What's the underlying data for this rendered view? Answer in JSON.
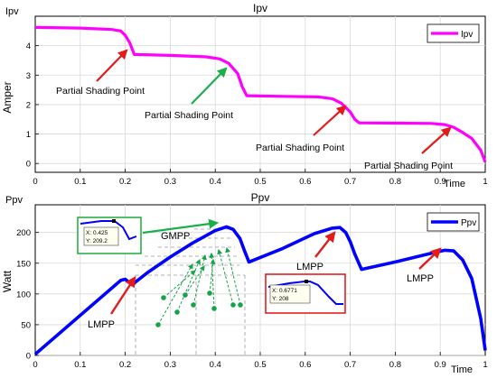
{
  "chart_data": [
    {
      "type": "line",
      "title": "Ipv",
      "ylabel": "Amper",
      "xlabel": "Time",
      "corner_label": "Ipv",
      "xlim": [
        0,
        1
      ],
      "ylim": [
        -0.3,
        5
      ],
      "xticks": [
        "0",
        "0.1",
        "0.2",
        "0.3",
        "0.4",
        "0.5",
        "0.6",
        "0.7",
        "0.8",
        "0.9",
        "1"
      ],
      "yticks": [
        "0",
        "1",
        "2",
        "3",
        "4"
      ],
      "grid": true,
      "legend": {
        "position": "top-right",
        "entries": [
          "Ipv"
        ]
      },
      "series": [
        {
          "name": "Ipv",
          "color": "#ff00ff",
          "x": [
            0,
            0.1,
            0.17,
            0.19,
            0.2,
            0.21,
            0.22,
            0.3,
            0.38,
            0.41,
            0.43,
            0.45,
            0.46,
            0.47,
            0.55,
            0.63,
            0.66,
            0.68,
            0.7,
            0.71,
            0.72,
            0.8,
            0.88,
            0.91,
            0.93,
            0.95,
            0.97,
            0.99,
            1.0
          ],
          "y": [
            4.62,
            4.6,
            4.55,
            4.5,
            4.35,
            4.1,
            3.7,
            3.67,
            3.62,
            3.55,
            3.4,
            3.05,
            2.6,
            2.3,
            2.28,
            2.26,
            2.2,
            2.05,
            1.75,
            1.5,
            1.38,
            1.37,
            1.36,
            1.32,
            1.23,
            1.05,
            0.85,
            0.45,
            0.05
          ]
        }
      ],
      "annotations": [
        "Partial Shading Point",
        "Partial Shading Point",
        "Partial Shading Point",
        "Partial Shading Point"
      ]
    },
    {
      "type": "line",
      "title": "Ppv",
      "ylabel": "Watt",
      "xlabel": "Time",
      "corner_label": "Ppv",
      "xlim": [
        0,
        1
      ],
      "ylim": [
        0,
        245
      ],
      "xticks": [
        "0",
        "0.1",
        "0.2",
        "0.3",
        "0.4",
        "0.5",
        "0.6",
        "0.7",
        "0.8",
        "0.9",
        "1"
      ],
      "yticks": [
        "0",
        "50",
        "100",
        "150",
        "200"
      ],
      "grid": true,
      "legend": {
        "position": "top-right",
        "entries": [
          "Ppv"
        ]
      },
      "series": [
        {
          "name": "Ppv",
          "color": "#0000ff",
          "x": [
            0,
            0.19,
            0.2,
            0.215,
            0.25,
            0.3,
            0.35,
            0.4,
            0.425,
            0.44,
            0.455,
            0.465,
            0.475,
            0.55,
            0.62,
            0.66,
            0.6771,
            0.69,
            0.7,
            0.71,
            0.725,
            0.8,
            0.88,
            0.91,
            0.93,
            0.95,
            0.97,
            0.99,
            1.0
          ],
          "y": [
            2,
            122,
            124,
            115,
            135,
            160,
            183,
            203,
            209.2,
            205,
            190,
            170,
            152,
            174,
            198,
            207,
            208,
            200,
            185,
            165,
            140,
            152,
            166,
            171,
            170,
            155,
            125,
            60,
            8
          ]
        }
      ],
      "annotations": [
        "GMPP",
        "LMPP",
        "LMPP",
        "LMPP"
      ],
      "insets": [
        {
          "x_readout": "X: 0.425",
          "y_readout": "Y: 209.2"
        },
        {
          "x_readout": "X: 0.6771",
          "y_readout": "Y: 208"
        }
      ]
    }
  ],
  "colors": {
    "shading_arrow": "#e21b1b",
    "partial_shading_green": "#19b04a",
    "dots_green": "#16a34a",
    "inset1_border": "#1faa3c",
    "inset2_border": "#e01010"
  }
}
